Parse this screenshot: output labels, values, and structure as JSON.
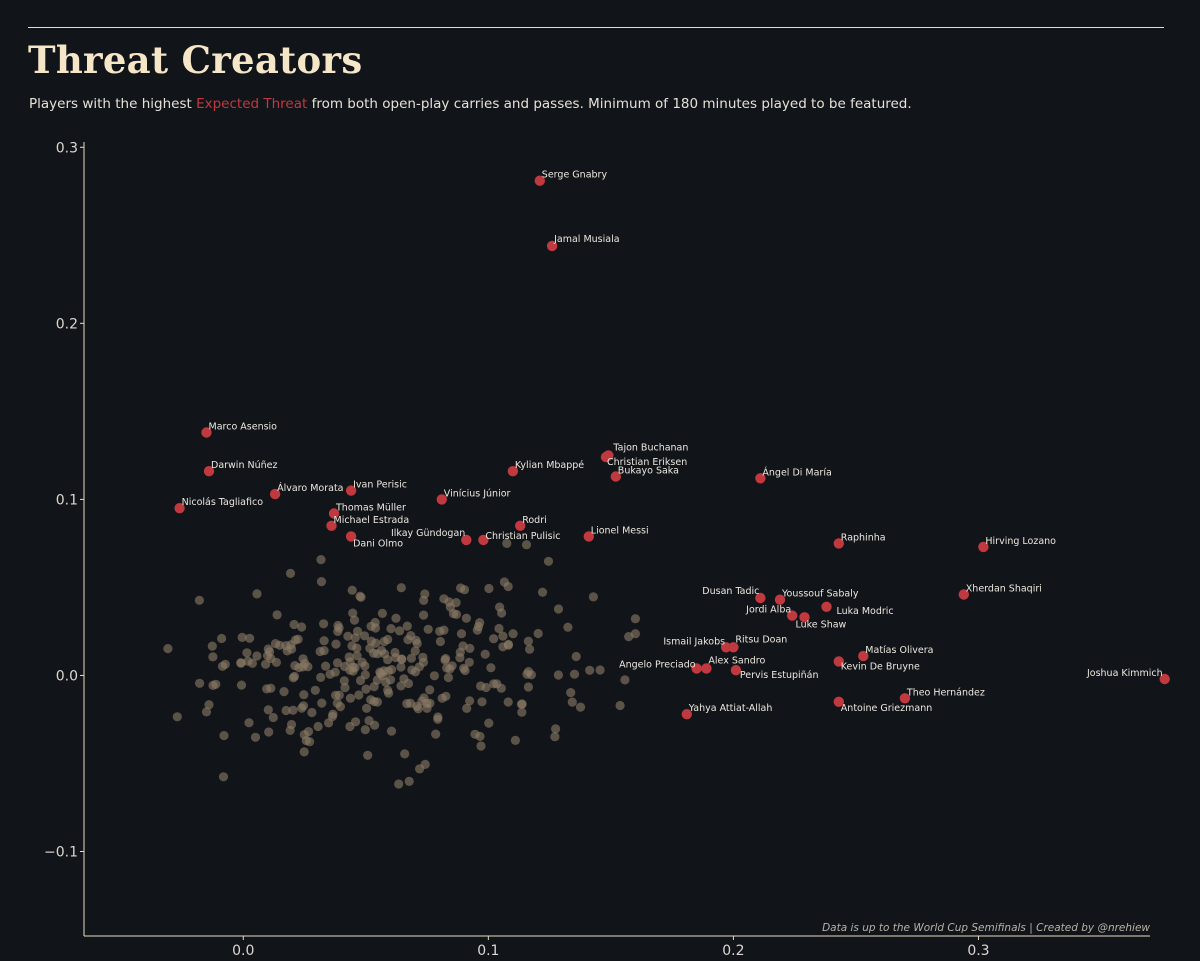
{
  "header": {
    "title": "Threat Creators",
    "subtitle_before": "Players with the highest ",
    "subtitle_highlight": "Expected Threat",
    "subtitle_after": " from both open-play carries and passes. Minimum of 180 minutes played to be featured."
  },
  "footer": {
    "credit": "Data is up to the World Cup Semifinals  |  Created by @nrehiew"
  },
  "chart_data": {
    "type": "scatter",
    "title": "Threat Creators",
    "xlabel": "",
    "ylabel": "",
    "xlim": [
      -0.065,
      0.37
    ],
    "ylim": [
      -0.148,
      0.303
    ],
    "xticks": [
      0.0,
      0.1,
      0.2,
      0.3
    ],
    "yticks": [
      0.3,
      0.2,
      0.1,
      0.0,
      -0.1
    ],
    "ytick_labels": [
      "0.3",
      "0.2",
      "0.1",
      "0.0",
      "−0.1"
    ],
    "xtick_labels": [
      "0.0",
      "0.1",
      "0.2",
      "0.3"
    ],
    "grid": false,
    "colors": {
      "highlight": "#c0393f",
      "other": "#8a7a66",
      "background": "#111419",
      "axis": "#e8dcc4"
    },
    "highlighted": [
      {
        "name": "Serge Gnabry",
        "x": 0.121,
        "y": 0.281
      },
      {
        "name": "Jamal Musiala",
        "x": 0.126,
        "y": 0.244
      },
      {
        "name": "Marco Asensio",
        "x": -0.015,
        "y": 0.138
      },
      {
        "name": "Darwin Núñez",
        "x": -0.014,
        "y": 0.116
      },
      {
        "name": "Nicolás Tagliafico",
        "x": -0.026,
        "y": 0.095
      },
      {
        "name": "Álvaro Morata",
        "x": 0.013,
        "y": 0.103
      },
      {
        "name": "Ivan Perisic",
        "x": 0.044,
        "y": 0.105
      },
      {
        "name": "Thomas Müller",
        "x": 0.037,
        "y": 0.092
      },
      {
        "name": "Michael Estrada",
        "x": 0.036,
        "y": 0.085
      },
      {
        "name": "Dani Olmo",
        "x": 0.044,
        "y": 0.079
      },
      {
        "name": "Vinícius Júnior",
        "x": 0.081,
        "y": 0.1
      },
      {
        "name": "Ilkay Gündogan",
        "x": 0.091,
        "y": 0.077
      },
      {
        "name": "Christian Pulisic",
        "x": 0.098,
        "y": 0.077
      },
      {
        "name": "Kylian Mbappé",
        "x": 0.11,
        "y": 0.116
      },
      {
        "name": "Rodri",
        "x": 0.113,
        "y": 0.085
      },
      {
        "name": "Tajon Buchanan",
        "x": 0.149,
        "y": 0.125
      },
      {
        "name": "Christian Eriksen",
        "x": 0.148,
        "y": 0.124
      },
      {
        "name": "Bukayo Saka",
        "x": 0.152,
        "y": 0.113
      },
      {
        "name": "Lionel Messi",
        "x": 0.141,
        "y": 0.079
      },
      {
        "name": "Ángel Di María",
        "x": 0.211,
        "y": 0.112
      },
      {
        "name": "Raphinha",
        "x": 0.243,
        "y": 0.075
      },
      {
        "name": "Hirving Lozano",
        "x": 0.302,
        "y": 0.073
      },
      {
        "name": "Xherdan Shaqiri",
        "x": 0.294,
        "y": 0.046
      },
      {
        "name": "Dusan Tadic",
        "x": 0.211,
        "y": 0.044
      },
      {
        "name": "Youssouf Sabaly",
        "x": 0.219,
        "y": 0.043
      },
      {
        "name": "Jordi Alba",
        "x": 0.224,
        "y": 0.034
      },
      {
        "name": "Luke Shaw",
        "x": 0.229,
        "y": 0.033
      },
      {
        "name": "Luka Modric",
        "x": 0.238,
        "y": 0.039
      },
      {
        "name": "Ismail Jakobs",
        "x": 0.197,
        "y": 0.016
      },
      {
        "name": "Ritsu Doan",
        "x": 0.2,
        "y": 0.016
      },
      {
        "name": "Matías Olivera",
        "x": 0.253,
        "y": 0.011
      },
      {
        "name": "Kevin De Bruyne",
        "x": 0.243,
        "y": 0.008
      },
      {
        "name": "Angelo Preciado",
        "x": 0.185,
        "y": 0.004
      },
      {
        "name": "Alex Sandro",
        "x": 0.189,
        "y": 0.004
      },
      {
        "name": "Pervis Estupiñán",
        "x": 0.201,
        "y": 0.003
      },
      {
        "name": "Joshua Kimmich",
        "x": 0.376,
        "y": -0.002
      },
      {
        "name": "Theo Hernández",
        "x": 0.27,
        "y": -0.013
      },
      {
        "name": "Antoine Griezmann",
        "x": 0.243,
        "y": -0.015
      },
      {
        "name": "Yahya Attiat-Allah",
        "x": 0.181,
        "y": -0.022
      }
    ]
  }
}
